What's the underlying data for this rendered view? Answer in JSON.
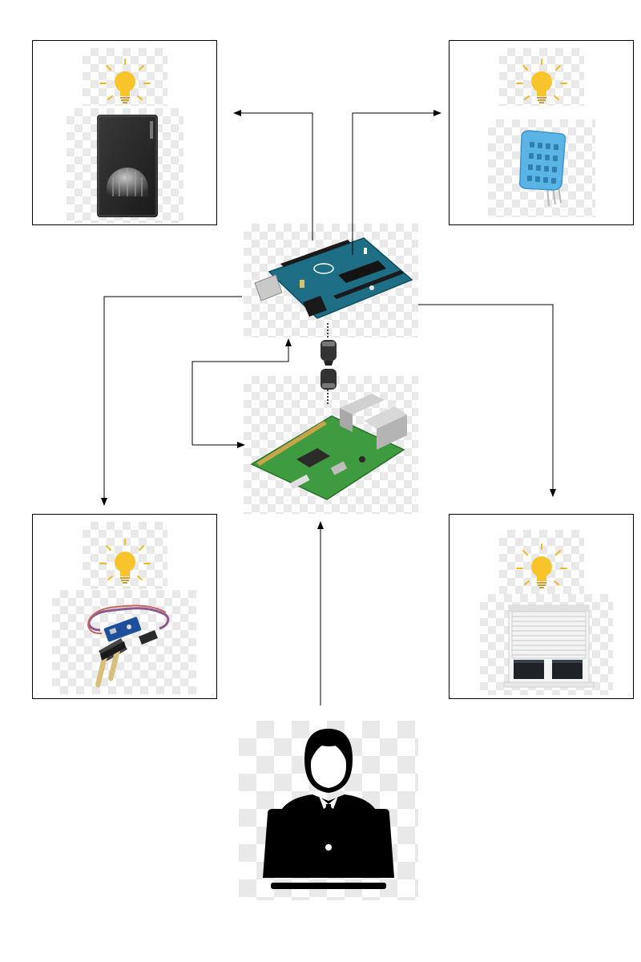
{
  "diagram": {
    "nodes": [
      {
        "id": "motion-sensor",
        "icon": "pir-motion-sensor-icon",
        "indicator": "light-bulb-icon"
      },
      {
        "id": "humidity-sensor",
        "icon": "dht11-humidity-sensor-icon",
        "indicator": "light-bulb-icon"
      },
      {
        "id": "arduino",
        "icon": "arduino-board-icon"
      },
      {
        "id": "raspberry-pi",
        "icon": "raspberry-pi-board-icon"
      },
      {
        "id": "soil-moisture-sensor",
        "icon": "soil-moisture-sensor-icon",
        "indicator": "light-bulb-icon"
      },
      {
        "id": "window-shutter",
        "icon": "roller-shutter-icon",
        "indicator": "light-bulb-icon"
      },
      {
        "id": "user",
        "icon": "user-laptop-icon"
      }
    ],
    "edges": [
      {
        "from": "arduino",
        "to": "motion-sensor"
      },
      {
        "from": "arduino",
        "to": "humidity-sensor"
      },
      {
        "from": "arduino",
        "to": "soil-moisture-sensor"
      },
      {
        "from": "arduino",
        "to": "window-shutter"
      },
      {
        "from": "arduino",
        "to": "raspberry-pi"
      },
      {
        "from": "raspberry-pi",
        "to": "arduino"
      },
      {
        "from": "user",
        "to": "raspberry-pi"
      },
      {
        "from": "arduino",
        "to": "raspberry-pi",
        "style": "usb-cable"
      }
    ],
    "colors": {
      "bulb": "#f7c52b",
      "bulb_rays": "#f1b82a",
      "arduino": "#1e6e86",
      "raspberry_pi": "#3f9b3f",
      "humidity_sensor": "#5ab4e6",
      "line": "#000000"
    }
  }
}
